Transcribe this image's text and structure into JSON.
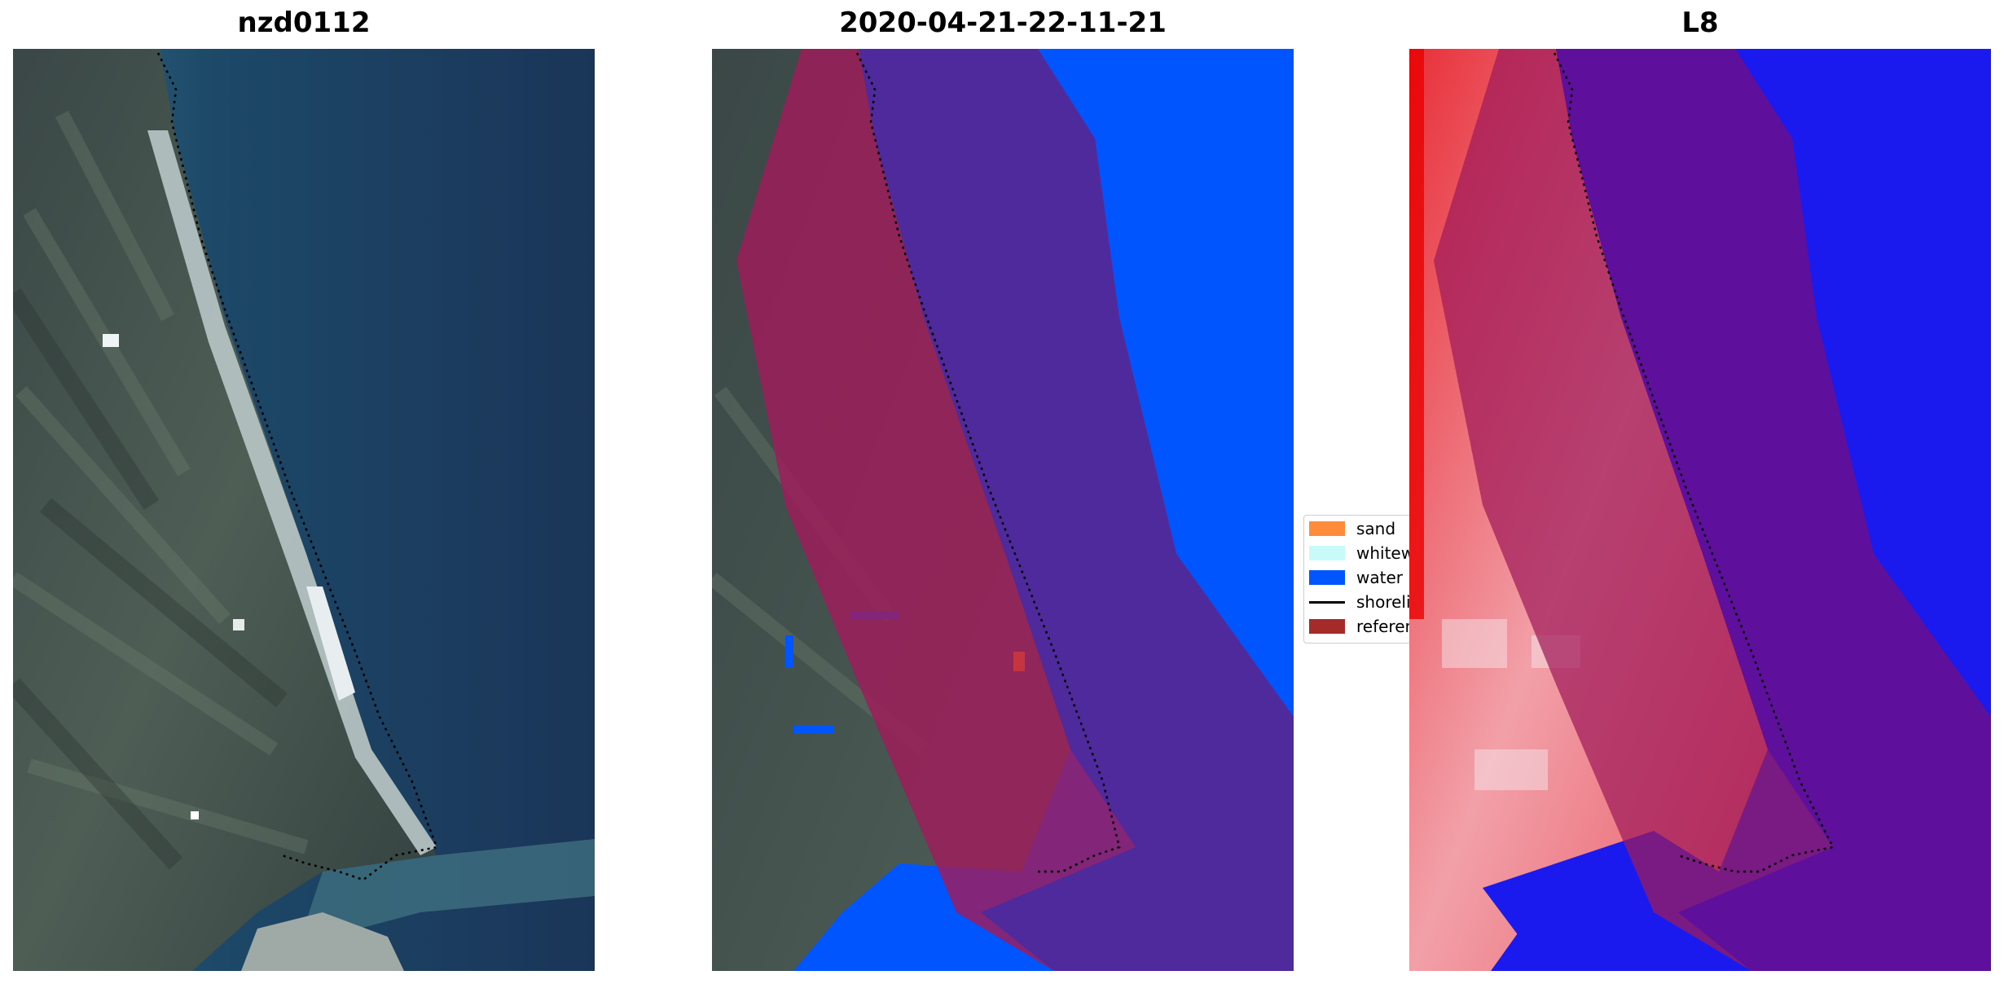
{
  "panels": [
    {
      "title": "nzd0112"
    },
    {
      "title": "2020-04-21-22-11-21"
    },
    {
      "title": "L8"
    }
  ],
  "legend": {
    "items": [
      {
        "label": "sand",
        "color": "#ff8c3a"
      },
      {
        "label": "whitewater",
        "color": "#c8fafa"
      },
      {
        "label": "water",
        "color": "#0055ff"
      },
      {
        "label": "shoreline",
        "color": "#000000"
      },
      {
        "label": "reference shoreline buffer",
        "color": "#a52a2a"
      }
    ]
  },
  "colors": {
    "land": "#3c4b4a",
    "ocean": "#1b3a5c",
    "water_class": "#0055ff",
    "buffer_overlay": "#a01b5a",
    "water_in_buffer": "#4b2a9e",
    "mndwi_land": "#e8303a",
    "mndwi_water": "#1a1aee"
  }
}
